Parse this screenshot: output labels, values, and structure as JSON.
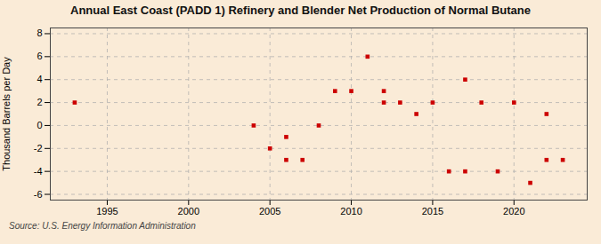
{
  "chart_data": {
    "type": "scatter",
    "title": "Annual East Coast (PADD 1) Refinery and Blender Net Production of Normal Butane",
    "y_label": "Thousand Barrels per Day",
    "annotations": [
      "Source: U.S. Energy Information Administration"
    ],
    "x": [
      1993,
      2004,
      2005,
      2006,
      2006,
      2007,
      2008,
      2009,
      2010,
      2011,
      2012,
      2012,
      2013,
      2014,
      2015,
      2016,
      2017,
      2017,
      2018,
      2019,
      2020,
      2021,
      2022,
      2022,
      2023
    ],
    "values": [
      2,
      0,
      -2,
      -3,
      -1,
      -3,
      0,
      3,
      3,
      6,
      3,
      2,
      2,
      1,
      2,
      -4,
      -4,
      4,
      2,
      -4,
      2,
      -5,
      -3,
      1,
      -3
    ],
    "color": "#cc0000",
    "marker": "square",
    "xlim": [
      1991.5,
      2024.5
    ],
    "xticks": [
      1995,
      2000,
      2005,
      2010,
      2015,
      2020
    ],
    "ylim": [
      -6.5,
      8.5
    ],
    "yticks": [
      -6,
      -4,
      -2,
      0,
      2,
      4,
      6,
      8
    ],
    "grid": true
  }
}
